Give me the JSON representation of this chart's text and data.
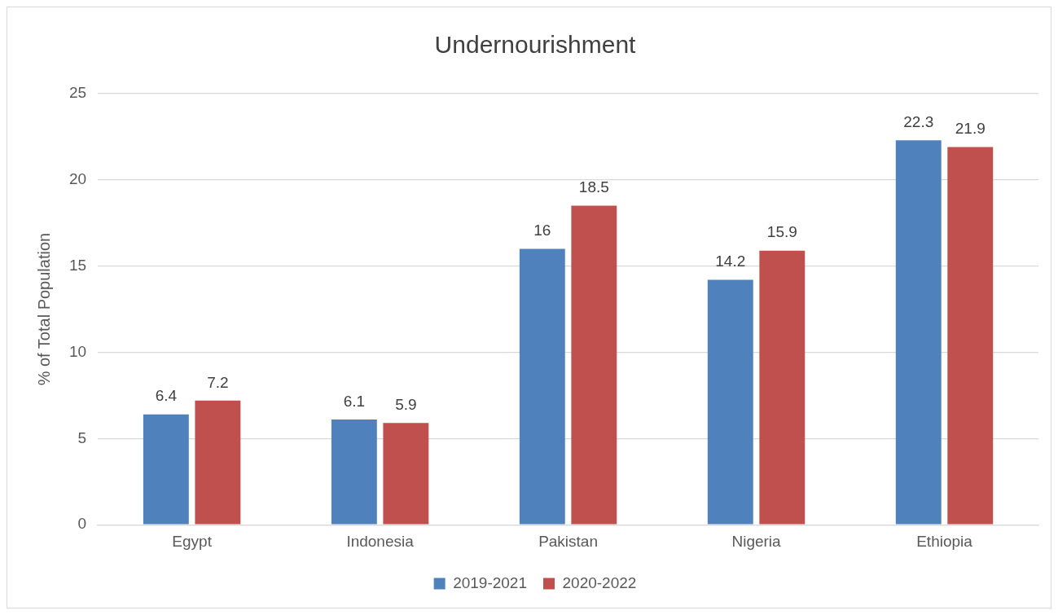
{
  "chart_data": {
    "type": "bar",
    "title": "Undernourishment",
    "ylabel": "% of Total Population",
    "categories": [
      "Egypt",
      "Indonesia",
      "Pakistan",
      "Nigeria",
      "Ethiopia"
    ],
    "series": [
      {
        "name": "2019-2021",
        "color": "#4f81bd",
        "values": [
          6.4,
          6.1,
          16,
          14.2,
          22.3
        ]
      },
      {
        "name": "2020-2022",
        "color": "#c0504d",
        "values": [
          7.2,
          5.9,
          18.5,
          15.9,
          21.9
        ]
      }
    ],
    "ylim": [
      0,
      25
    ],
    "yticks": [
      0,
      5,
      10,
      15,
      20,
      25
    ],
    "grid": "y",
    "legend": "bottom",
    "data_labels": true
  }
}
